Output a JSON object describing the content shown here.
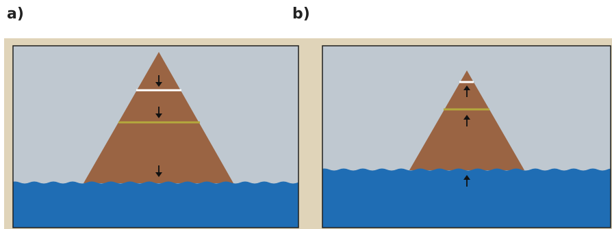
{
  "panels": [
    {
      "label": "a)",
      "motion": "down",
      "markers": [
        "white",
        "yellow"
      ]
    },
    {
      "label": "b)",
      "motion": "up",
      "markers": [
        "white",
        "yellow"
      ]
    }
  ],
  "colors": {
    "frame_background": "#e0d4b9",
    "sky": "#bfc8d0",
    "ocean": "#1f6db4",
    "mountain": "#9a6443",
    "white_marker": "#ffffff",
    "yellow_marker": "#b4a93c",
    "arrow": "#111111",
    "border": "#1e1e1e"
  }
}
